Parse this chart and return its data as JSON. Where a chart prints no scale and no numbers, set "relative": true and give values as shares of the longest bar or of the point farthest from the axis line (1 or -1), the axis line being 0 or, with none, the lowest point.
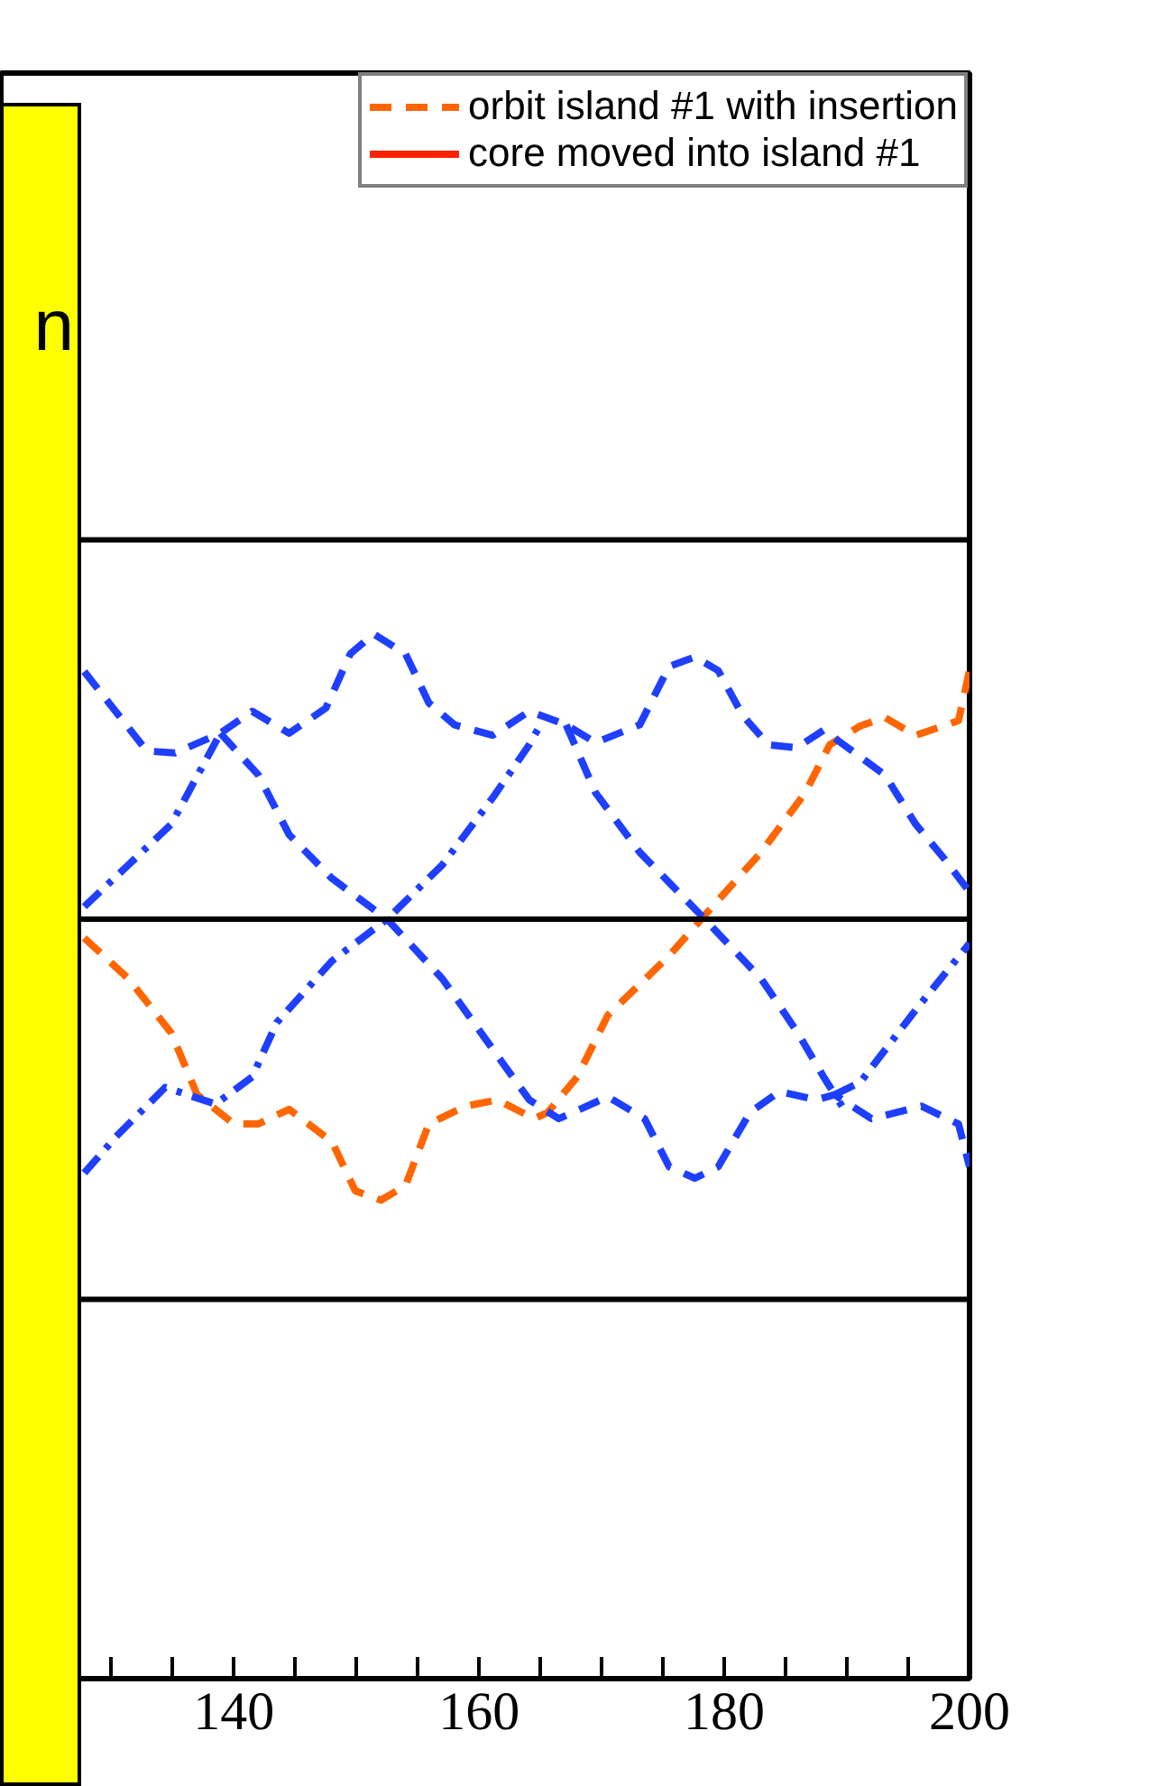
{
  "chart_data": {
    "type": "line",
    "relative": true,
    "legend": "top right",
    "grid": false,
    "xlim": [
      121,
      200
    ],
    "xticks": [
      {
        "value": 130,
        "label": null
      },
      {
        "value": 135,
        "label": null
      },
      140,
      {
        "value": 145,
        "label": null
      },
      {
        "value": 150,
        "label": null
      },
      {
        "value": 155,
        "label": null
      },
      160,
      {
        "value": 165,
        "label": null
      },
      {
        "value": 170,
        "label": null
      },
      {
        "value": 175,
        "label": null
      },
      180,
      {
        "value": 185,
        "label": null
      },
      {
        "value": 190,
        "label": null
      },
      {
        "value": 195,
        "label": null
      },
      200
    ],
    "annotations": [
      "n"
    ],
    "ref_lines": [
      {
        "axis": "y",
        "value": 1.09,
        "color": "#000000"
      },
      {
        "axis": "y",
        "value": 0.727,
        "color": "#000000"
      },
      {
        "axis": "y",
        "value": 0.363,
        "color": "#000000"
      }
    ],
    "series": [
      {
        "name": "orbit island #1 with insertion",
        "color": "#ff6600",
        "line_style": "dashed",
        "x": [
          127.8,
          131.4,
          134.9,
          137.0,
          140,
          142.0,
          144.5,
          148.0,
          149.9,
          152.0,
          154.0,
          155.9,
          158.9,
          161.5,
          164.5,
          165.6,
          168.0,
          170.5,
          175.5,
          178.5,
          183.0,
          186.6,
          188.6,
          191.1,
          193.1,
          195.6,
          199.1,
          200
        ],
        "values": [
          0.709,
          0.67,
          0.618,
          0.559,
          0.531,
          0.531,
          0.545,
          0.514,
          0.467,
          0.458,
          0.472,
          0.531,
          0.548,
          0.554,
          0.536,
          0.542,
          0.576,
          0.635,
          0.692,
          0.732,
          0.791,
          0.848,
          0.894,
          0.912,
          0.92,
          0.903,
          0.917,
          0.965
        ]
      },
      {
        "name": "core moved into island #1",
        "color": "#ff2200",
        "line_style": "solid"
      },
      {
        "color": "#1f3fff",
        "line_style": "dashed",
        "x": [
          127.8,
          132.9,
          135.2,
          138.9,
          141.5,
          144.5,
          147.5,
          149.5,
          151.4,
          154.0,
          155.9,
          158.0,
          161.1,
          164.1,
          167.1,
          169.5,
          173.1,
          175.5,
          177.6,
          179.5,
          181.5,
          183.6,
          185.9,
          188.1,
          193.1,
          195.6,
          198.0,
          200
        ],
        "values": [
          0.964,
          0.888,
          0.886,
          0.905,
          0.926,
          0.905,
          0.929,
          0.981,
          1.0,
          0.981,
          0.934,
          0.913,
          0.903,
          0.926,
          0.913,
          0.896,
          0.913,
          0.969,
          0.978,
          0.965,
          0.922,
          0.894,
          0.891,
          0.908,
          0.865,
          0.818,
          0.784,
          0.753
        ]
      },
      {
        "color": "#1f3fff",
        "line_style": "dashed",
        "x": [
          138.9,
          142.0,
          144.5,
          148.0,
          152.5,
          157.0,
          162.0,
          164.1,
          166.5,
          170.5,
          173.5,
          175.5,
          177.6,
          179.5,
          182.1,
          184.5,
          187.5,
          189.0,
          192.0,
          196.1,
          199.1,
          200
        ],
        "values": [
          0.905,
          0.865,
          0.808,
          0.766,
          0.727,
          0.67,
          0.588,
          0.554,
          0.536,
          0.557,
          0.536,
          0.49,
          0.479,
          0.49,
          0.542,
          0.562,
          0.554,
          0.559,
          0.536,
          0.548,
          0.531,
          0.49
        ]
      },
      {
        "color": "#1f3fff",
        "line_style": "dashdot",
        "x": [
          127.8,
          130.4,
          134.4,
          138.5,
          141.5,
          143.5,
          148.0,
          152.5,
          157.0,
          161.1,
          164.1,
          165.0
        ],
        "values": [
          0.484,
          0.519,
          0.566,
          0.55,
          0.576,
          0.628,
          0.687,
          0.727,
          0.779,
          0.843,
          0.894,
          0.913
        ]
      },
      {
        "color": "#1f3fff",
        "line_style": "dashdot",
        "x": [
          127.8,
          131.4,
          134.9,
          138.9
        ],
        "values": [
          0.739,
          0.779,
          0.818,
          0.905
        ]
      },
      {
        "color": "#1f3fff",
        "line_style": "dashed",
        "x": [
          167.1,
          169.5,
          173.1,
          178.0,
          183.0,
          186.0,
          188.1,
          189.6
        ],
        "values": [
          0.913,
          0.848,
          0.791,
          0.732,
          0.67,
          0.618,
          0.576,
          0.548
        ]
      },
      {
        "color": "#1f3fff",
        "line_style": "dashdot",
        "x": [
          189.0,
          191.1,
          195.6,
          200
        ],
        "values": [
          0.559,
          0.571,
          0.64,
          0.704
        ]
      }
    ]
  }
}
